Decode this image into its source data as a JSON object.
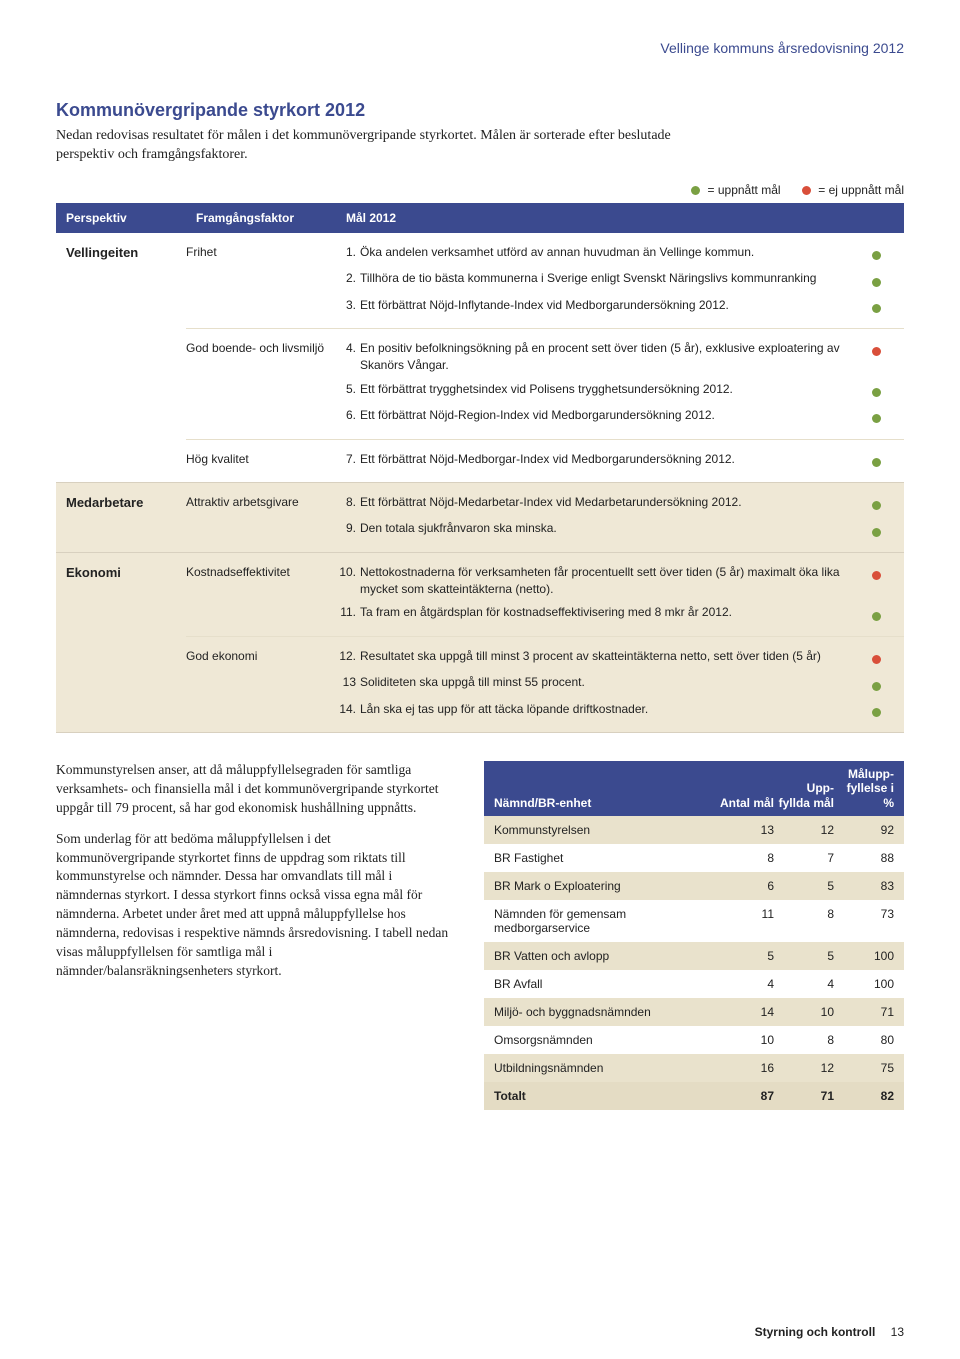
{
  "colors": {
    "accent": "#3b4a8f",
    "achieved": "#7aa043",
    "not_achieved": "#d94f3a",
    "alt_row": "#efe8d6",
    "shade_row": "#e9e2cc",
    "total_row": "#e4dcc4"
  },
  "header": {
    "doc_title": "Vellinge kommuns årsredovisning 2012"
  },
  "title": "Kommunövergripande styrkort 2012",
  "intro": "Nedan redovisas resultatet för målen i det kommunövergripande styrkortet. Målen är sorterade efter beslutade perspektiv och framgångsfaktorer.",
  "legend": {
    "achieved": "= uppnått mål",
    "not_achieved": "= ej uppnått mål"
  },
  "table_header": {
    "perspektiv": "Perspektiv",
    "faktor": "Framgångsfaktor",
    "mal": "Mål 2012"
  },
  "sections": [
    {
      "perspektiv": "Vellingeiten",
      "alt": false,
      "factors": [
        {
          "name": "Frihet",
          "goals": [
            {
              "n": "1.",
              "t": "Öka andelen verksamhet utförd av annan huvudman än Vellinge kommun.",
              "s": "achieved"
            },
            {
              "n": "2.",
              "t": "Tillhöra de tio bästa kommunerna i Sverige enligt Svenskt Näringslivs kommunranking",
              "s": "achieved"
            },
            {
              "n": "3.",
              "t": "Ett förbättrat Nöjd-Inflytande-Index vid Medborgarundersökning 2012.",
              "s": "achieved"
            }
          ]
        },
        {
          "name": "God boende- och livsmiljö",
          "goals": [
            {
              "n": "4.",
              "t": "En positiv befolkningsökning på en procent sett över tiden (5 år), exklusive exploatering av Skanörs Vångar.",
              "s": "not_achieved"
            },
            {
              "n": "5.",
              "t": "Ett förbättrat trygghetsindex vid Polisens trygghetsundersökning 2012.",
              "s": "achieved"
            },
            {
              "n": "6.",
              "t": "Ett förbättrat Nöjd-Region-Index vid Medborgarundersökning 2012.",
              "s": "achieved"
            }
          ]
        },
        {
          "name": "Hög kvalitet",
          "goals": [
            {
              "n": "7.",
              "t": "Ett förbättrat Nöjd-Medborgar-Index vid Medborgarundersökning 2012.",
              "s": "achieved"
            }
          ]
        }
      ]
    },
    {
      "perspektiv": "Medarbetare",
      "alt": true,
      "factors": [
        {
          "name": "Attraktiv arbetsgivare",
          "goals": [
            {
              "n": "8.",
              "t": "Ett förbättrat Nöjd-Medarbetar-Index vid Medarbetarundersökning 2012.",
              "s": "achieved"
            },
            {
              "n": "9.",
              "t": "Den totala sjukfrånvaron ska minska.",
              "s": "achieved"
            }
          ]
        }
      ]
    },
    {
      "perspektiv": "Ekonomi",
      "alt": true,
      "factors": [
        {
          "name": "Kostnadseffektivitet",
          "goals": [
            {
              "n": "10.",
              "t": "Nettokostnaderna för verksamheten får procentuellt sett över tiden (5 år) maximalt öka lika mycket som skatteintäkterna (netto).",
              "s": "not_achieved"
            },
            {
              "n": "11.",
              "t": "Ta fram en åtgärdsplan för kostnadseffektivisering med 8 mkr år 2012.",
              "s": "achieved"
            }
          ]
        },
        {
          "name": "God ekonomi",
          "goals": [
            {
              "n": "12.",
              "t": "Resultatet ska uppgå till minst 3 procent av skatteintäkterna netto, sett över tiden (5 år)",
              "s": "not_achieved"
            },
            {
              "n": "13",
              "t": "Soliditeten ska uppgå till minst 55 procent.",
              "s": "achieved"
            },
            {
              "n": "14.",
              "t": "Lån ska ej tas upp för att täcka löpande driftkostnader.",
              "s": "achieved"
            }
          ]
        }
      ]
    }
  ],
  "body": {
    "p1": "Kommunstyrelsen anser, att då måluppfyllelsegraden för samtliga verksamhets- och finansiella mål i det kommunövergripande styrkortet uppgår till 79 procent, så har god ekonomisk hushållning uppnåtts.",
    "p2": "Som underlag för att bedöma måluppfyllelsen i det kommunövergripande styrkortet finns de uppdrag som riktats till kommunstyrelse och nämnder. Dessa har omvandlats till mål i nämndernas styrkort. I dessa styrkort finns också vissa egna mål för nämnderna. Arbetet under året med att uppnå måluppfyllelse hos nämnderna, redovisas i respektive nämnds årsredovisning. I tabell nedan visas måluppfyllelsen för samtliga mål i nämnder/balansräkningsenheters styrkort."
  },
  "result_table": {
    "head": {
      "c1": "Nämnd/BR-enhet",
      "c2": "Antal mål",
      "c3": "Upp- fyllda mål",
      "c4": "Målupp- fyllelse i %"
    },
    "rows": [
      {
        "c1": "Kommunstyrelsen",
        "c2": "13",
        "c3": "12",
        "c4": "92",
        "shade": true
      },
      {
        "c1": "BR Fastighet",
        "c2": "8",
        "c3": "7",
        "c4": "88",
        "shade": false
      },
      {
        "c1": "BR Mark o Exploatering",
        "c2": "6",
        "c3": "5",
        "c4": "83",
        "shade": true
      },
      {
        "c1": "Nämnden för gemensam medborgarservice",
        "c2": "11",
        "c3": "8",
        "c4": "73",
        "shade": false
      },
      {
        "c1": "BR Vatten och avlopp",
        "c2": "5",
        "c3": "5",
        "c4": "100",
        "shade": true
      },
      {
        "c1": "BR Avfall",
        "c2": "4",
        "c3": "4",
        "c4": "100",
        "shade": false
      },
      {
        "c1": "Miljö- och byggnadsnämnden",
        "c2": "14",
        "c3": "10",
        "c4": "71",
        "shade": true
      },
      {
        "c1": "Omsorgsnämnden",
        "c2": "10",
        "c3": "8",
        "c4": "80",
        "shade": false
      },
      {
        "c1": "Utbildningsnämnden",
        "c2": "16",
        "c3": "12",
        "c4": "75",
        "shade": true
      }
    ],
    "total": {
      "c1": "Totalt",
      "c2": "87",
      "c3": "71",
      "c4": "82"
    }
  },
  "footer": {
    "label": "Styrning och kontroll",
    "page": "13"
  }
}
